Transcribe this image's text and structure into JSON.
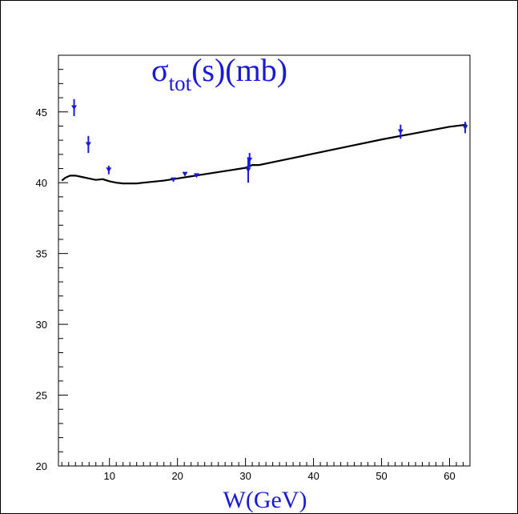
{
  "chart_data": {
    "type": "scatter",
    "title": "σtot(s)(mb)",
    "title_main": "σ",
    "title_sub": "tot",
    "title_rest": "(s)(mb)",
    "xlabel": "W(GeV)",
    "ylabel": "",
    "xlim": [
      2.5,
      63.0
    ],
    "ylim": [
      20,
      49
    ],
    "x_ticks": [
      10,
      20,
      30,
      40,
      50,
      60
    ],
    "y_ticks": [
      20,
      25,
      30,
      35,
      40,
      45
    ],
    "grid": false,
    "colors": {
      "points": "#1a1ad6",
      "curve": "#000000",
      "title": "#1a1ad6"
    },
    "series": [
      {
        "kind": "points",
        "x": [
          4.8,
          6.9,
          9.9,
          19.4,
          21.1,
          22.8,
          30.4,
          30.6,
          52.8,
          62.3
        ],
        "y": [
          45.3,
          42.7,
          40.9,
          40.2,
          40.6,
          40.5,
          40.9,
          41.6,
          43.6,
          43.9
        ],
        "err": [
          0.6,
          0.6,
          0.3,
          0.1,
          0.1,
          0.1,
          0.9,
          0.5,
          0.5,
          0.4
        ]
      },
      {
        "kind": "curve",
        "x": [
          3.0,
          3.5,
          4.2,
          5.0,
          6.0,
          7.0,
          8.0,
          9.0,
          10.0,
          11.0,
          12.0,
          13.0,
          14.0,
          15.0,
          16.0,
          18.0,
          20.0,
          22.0,
          24.0,
          26.0,
          28.0,
          30.0,
          31.0,
          32.0,
          35.0,
          40.0,
          45.0,
          50.0,
          55.0,
          60.0,
          62.5
        ],
        "y": [
          40.15,
          40.35,
          40.5,
          40.5,
          40.4,
          40.3,
          40.2,
          40.25,
          40.1,
          40.0,
          39.95,
          39.95,
          39.95,
          40.0,
          40.05,
          40.15,
          40.3,
          40.45,
          40.6,
          40.75,
          40.9,
          41.05,
          41.25,
          41.25,
          41.55,
          42.05,
          42.55,
          43.05,
          43.5,
          43.95,
          44.1
        ]
      }
    ]
  }
}
